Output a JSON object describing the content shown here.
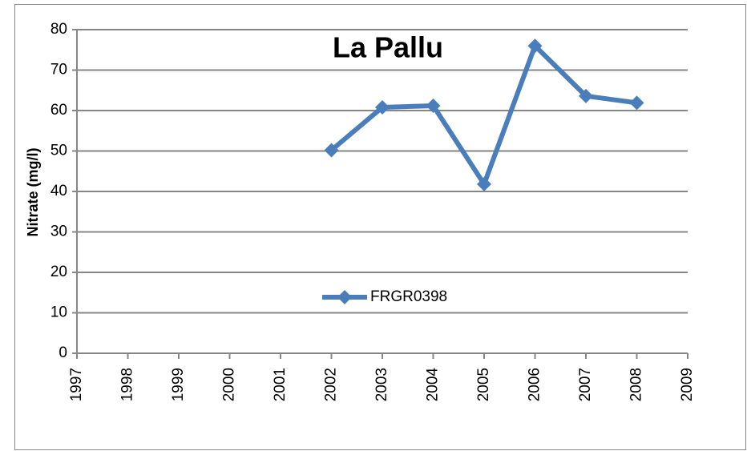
{
  "chart_data": {
    "type": "line",
    "title": "La Pallu",
    "y_label": "Nitrate (mg/l)",
    "x": [
      2002,
      2003,
      2004,
      2005,
      2006,
      2007,
      2008
    ],
    "series": [
      {
        "name": "FRGR0398",
        "color": "#4a7ebb",
        "values": [
          50.2,
          60.8,
          61.2,
          41.8,
          76,
          63.6,
          61.9
        ]
      }
    ],
    "xlim": [
      1997,
      2009
    ],
    "xticks": [
      1997,
      1998,
      1999,
      2000,
      2001,
      2002,
      2003,
      2004,
      2005,
      2006,
      2007,
      2008,
      2009
    ],
    "ylim": [
      0,
      80
    ],
    "yticks": [
      0,
      10,
      20,
      30,
      40,
      50,
      60,
      70,
      80
    ],
    "grid": true
  }
}
